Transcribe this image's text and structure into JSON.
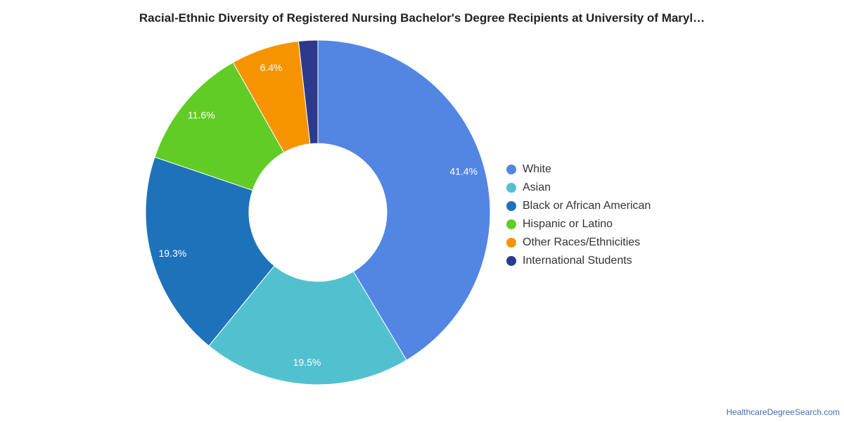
{
  "header": {
    "title": "Racial-Ethnic Diversity of Registered Nursing Bachelor's Degree Recipients at University of Maryl…"
  },
  "source": {
    "label": "HealthcareDegreeSearch.com"
  },
  "chart_data": {
    "type": "pie",
    "title": "Racial-Ethnic Diversity of Registered Nursing Bachelor's Degree Recipients at University of Maryl…",
    "donut": true,
    "legend_position": "right",
    "series": [
      {
        "name": "White",
        "value": 41.4,
        "label": "41.4%",
        "color": "#5385e3"
      },
      {
        "name": "Asian",
        "value": 19.5,
        "label": "19.5%",
        "color": "#52c1cf"
      },
      {
        "name": "Black or African American",
        "value": 19.3,
        "label": "19.3%",
        "color": "#1e72ba"
      },
      {
        "name": "Hispanic or Latino",
        "value": 11.6,
        "label": "11.6%",
        "color": "#62cc26"
      },
      {
        "name": "Other Races/Ethnicities",
        "value": 6.4,
        "label": "6.4%",
        "color": "#f69400"
      },
      {
        "name": "International Students",
        "value": 1.8,
        "label": "",
        "color": "#2d3a8c"
      }
    ]
  }
}
